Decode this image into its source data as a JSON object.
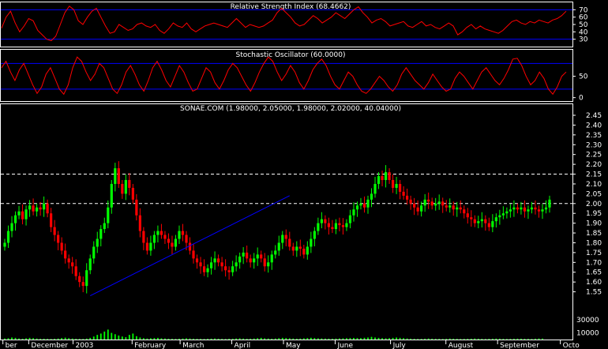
{
  "chart_data": [
    {
      "type": "line",
      "panel": "rsi",
      "title": "Relative Strength Index (68.4662)",
      "ylim": [
        20,
        80
      ],
      "yticks": [
        30,
        40,
        50,
        60,
        70
      ],
      "reference_lines": [
        70,
        30
      ],
      "line_color": "#ff0000",
      "ref_color": "#0000ff",
      "series": [
        {
          "values": [
            45,
            60,
            68,
            52,
            40,
            48,
            58,
            55,
            42,
            36,
            30,
            28,
            34,
            50,
            66,
            75,
            70,
            55,
            50,
            60,
            68,
            72,
            60,
            48,
            38,
            40,
            50,
            46,
            42,
            44,
            50,
            52,
            48,
            46,
            50,
            42,
            38,
            44,
            52,
            48,
            46,
            52,
            44,
            40,
            44,
            48,
            50,
            52,
            50,
            48,
            46,
            52,
            58,
            52,
            46,
            50,
            48,
            46,
            48,
            52,
            56,
            66,
            72,
            66,
            60,
            52,
            48,
            50,
            56,
            62,
            58,
            52,
            56,
            60,
            66,
            62,
            58,
            64,
            70,
            74,
            66,
            60,
            52,
            56,
            58,
            54,
            48,
            50,
            52,
            54,
            48,
            46,
            50,
            54,
            48,
            50,
            46,
            44,
            48,
            52,
            48,
            36,
            40,
            46,
            50,
            44,
            48,
            44,
            42,
            40,
            38,
            42,
            48,
            54,
            56,
            52,
            50,
            54,
            52,
            56,
            54,
            52,
            56,
            58,
            62,
            68
          ]
        }
      ]
    },
    {
      "type": "line",
      "panel": "stochastic",
      "title": "Stochastic Oscillator (60.0000)",
      "ylim": [
        -8,
        112
      ],
      "yticks": [
        0,
        50
      ],
      "reference_lines": [
        80,
        20
      ],
      "line_color": "#ff0000",
      "ref_color": "#0000ff",
      "series": [
        {
          "values": [
            70,
            85,
            60,
            40,
            65,
            80,
            55,
            30,
            10,
            25,
            55,
            70,
            45,
            20,
            8,
            30,
            70,
            95,
            85,
            60,
            40,
            55,
            80,
            70,
            45,
            20,
            10,
            30,
            60,
            75,
            55,
            30,
            15,
            40,
            70,
            85,
            65,
            40,
            25,
            50,
            75,
            60,
            35,
            15,
            20,
            45,
            70,
            60,
            35,
            20,
            40,
            65,
            80,
            70,
            50,
            30,
            15,
            35,
            60,
            80,
            95,
            85,
            60,
            40,
            55,
            75,
            60,
            35,
            20,
            40,
            65,
            80,
            90,
            75,
            50,
            30,
            20,
            40,
            60,
            50,
            30,
            15,
            10,
            20,
            35,
            50,
            40,
            25,
            15,
            30,
            55,
            70,
            55,
            40,
            30,
            20,
            35,
            55,
            40,
            25,
            15,
            20,
            45,
            60,
            50,
            35,
            20,
            40,
            60,
            70,
            55,
            40,
            30,
            45,
            65,
            90,
            92,
            75,
            50,
            30,
            40,
            60,
            45,
            20,
            8,
            25,
            50,
            60
          ]
        }
      ]
    },
    {
      "type": "candlestick",
      "panel": "price",
      "title": "SONAE.COM (1.98000, 2.05000, 1.98000, 2.02000, 40.04000)",
      "ylim": [
        1.5,
        2.45
      ],
      "yticks": [
        1.55,
        1.6,
        1.65,
        1.7,
        1.75,
        1.8,
        1.85,
        1.9,
        1.95,
        2.0,
        2.05,
        2.1,
        2.15,
        2.2,
        2.25,
        2.3,
        2.35,
        2.4,
        2.45
      ],
      "dashed_levels": [
        2.15,
        2.0
      ],
      "up_color": "#00ff00",
      "down_color": "#ff0000",
      "trendlines": [
        {
          "from": [
            24,
            1.53
          ],
          "to": [
            80,
            2.04
          ],
          "color": "#0000ff"
        }
      ],
      "close": [
        1.8,
        1.86,
        1.9,
        1.94,
        1.96,
        1.92,
        1.97,
        1.99,
        1.96,
        1.98,
        1.97,
        2.0,
        1.95,
        1.88,
        1.84,
        1.8,
        1.76,
        1.72,
        1.7,
        1.68,
        1.63,
        1.6,
        1.58,
        1.66,
        1.72,
        1.78,
        1.82,
        1.87,
        1.9,
        1.98,
        2.1,
        2.18,
        2.1,
        2.05,
        2.12,
        2.08,
        2.02,
        1.94,
        1.86,
        1.8,
        1.76,
        1.8,
        1.84,
        1.86,
        1.84,
        1.82,
        1.8,
        1.78,
        1.82,
        1.86,
        1.84,
        1.8,
        1.76,
        1.72,
        1.7,
        1.68,
        1.65,
        1.67,
        1.7,
        1.72,
        1.7,
        1.68,
        1.66,
        1.65,
        1.68,
        1.7,
        1.73,
        1.75,
        1.72,
        1.7,
        1.72,
        1.74,
        1.72,
        1.68,
        1.7,
        1.74,
        1.76,
        1.8,
        1.84,
        1.82,
        1.78,
        1.76,
        1.78,
        1.77,
        1.74,
        1.78,
        1.82,
        1.86,
        1.9,
        1.92,
        1.9,
        1.88,
        1.87,
        1.9,
        1.89,
        1.88,
        1.9,
        1.94,
        1.97,
        1.99,
        2.0,
        1.98,
        2.02,
        2.05,
        2.1,
        2.14,
        2.12,
        2.16,
        2.12,
        2.08,
        2.1,
        2.06,
        2.04,
        2.02,
        2.0,
        1.98,
        1.96,
        1.99,
        2.02,
        2.01,
        1.99,
        2.0,
        2.01,
        1.99,
        1.98,
        1.99,
        1.97,
        1.98,
        1.97,
        1.95,
        1.93,
        1.92,
        1.9,
        1.91,
        1.92,
        1.9,
        1.88,
        1.91,
        1.93,
        1.94,
        1.95,
        1.96,
        1.97,
        1.98,
        1.97,
        1.98,
        1.96,
        1.97,
        1.98,
        1.97,
        1.96,
        1.97,
        1.98,
        2.02
      ]
    },
    {
      "type": "bar",
      "panel": "volume",
      "ylim": [
        0,
        50000
      ],
      "yticks": [
        10000,
        30000
      ],
      "bar_color": "#00ff00",
      "values": [
        1500,
        2000,
        3000,
        2500,
        1500,
        1200,
        1800,
        2500,
        2000,
        1500,
        1000,
        1200,
        900,
        800,
        1100,
        1500,
        2200,
        2800,
        2000,
        1500,
        1000,
        900,
        800,
        1400,
        2500,
        4500,
        7000,
        9000,
        12000,
        15000,
        10000,
        8000,
        6000,
        4500,
        3500,
        7000,
        9000,
        5000,
        3000,
        2000,
        1500,
        1800,
        2200,
        2500,
        1800,
        1500,
        1200,
        1000,
        900,
        1100,
        1500,
        1800,
        1500,
        1200,
        1000,
        900,
        800,
        1000,
        1300,
        1500,
        1200,
        900,
        800,
        1000,
        1200,
        1500,
        1800,
        1400,
        1100,
        1200,
        1500,
        2000,
        2500,
        1800,
        1500,
        1200,
        1500,
        2000,
        2500,
        2200,
        1800,
        1500,
        1200,
        1400,
        1800,
        2200,
        2600,
        2200,
        1800,
        1600,
        1400,
        1300,
        1200,
        1400,
        1600,
        1800,
        2000,
        2200,
        2400,
        2200,
        2000,
        2600,
        3000,
        4000,
        3000,
        2500,
        2000,
        1800,
        2000,
        2500,
        3000,
        2500,
        2000,
        1600,
        1200,
        1000,
        800,
        900,
        1200,
        1500,
        1200,
        1000,
        900,
        800,
        1000,
        1400,
        1200,
        1000,
        800,
        900,
        1000,
        1200,
        1500,
        1200,
        1000,
        800,
        1000,
        1200,
        1400,
        1200,
        1000,
        800,
        900,
        1100,
        1300,
        1200,
        1000,
        900,
        800,
        1200,
        1500,
        1400
      ]
    }
  ],
  "x_axis": {
    "labels": [
      {
        "text": "ber",
        "x": 1
      },
      {
        "text": "December",
        "x": 8
      },
      {
        "text": "2003",
        "x": 20
      },
      {
        "text": "February",
        "x": 36
      },
      {
        "text": "March",
        "x": 49
      },
      {
        "text": "April",
        "x": 63
      },
      {
        "text": "May",
        "x": 77
      },
      {
        "text": "June",
        "x": 91
      },
      {
        "text": "July",
        "x": 106
      },
      {
        "text": "August",
        "x": 121
      },
      {
        "text": "September",
        "x": 135
      },
      {
        "text": "Octo",
        "x": 152
      }
    ],
    "count": 155
  }
}
